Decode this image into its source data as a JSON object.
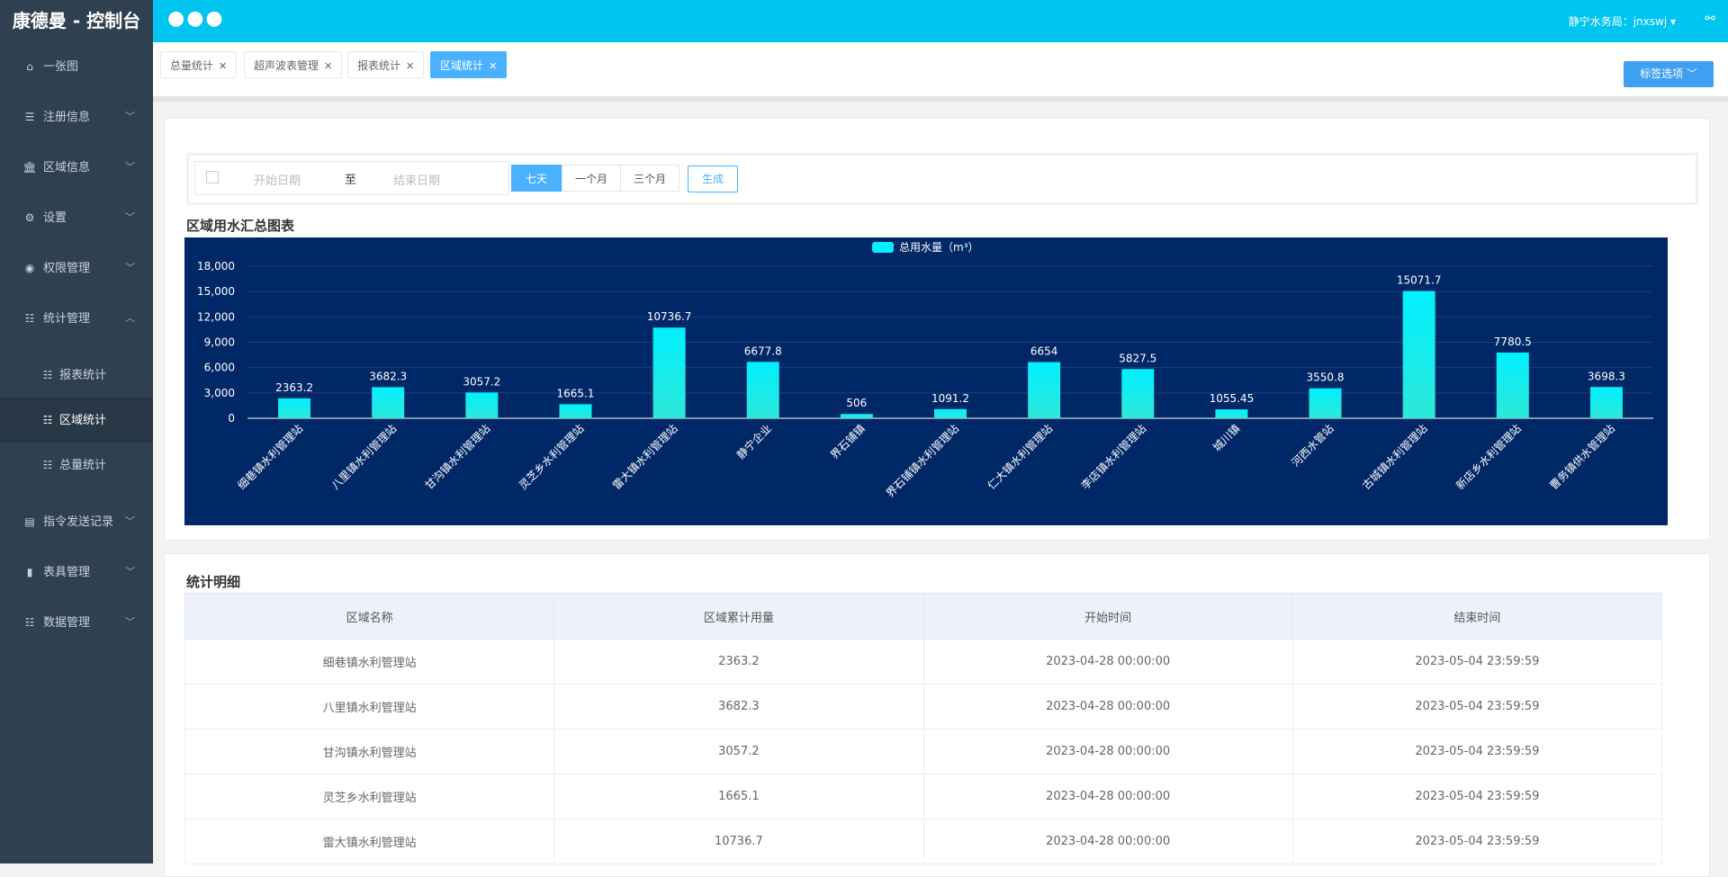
{
  "app": {
    "title": "康德曼 - 控制台"
  },
  "topbar": {
    "menu_dots": "●●●",
    "user": "静宁水务局：jnxswj ▾",
    "share_icon": "share-icon"
  },
  "sidebar": {
    "items": [
      {
        "label": "一张图",
        "icon": "home-icon"
      },
      {
        "label": "注册信息",
        "icon": "list-icon"
      },
      {
        "label": "区域信息",
        "icon": "bank-icon"
      },
      {
        "label": "设置",
        "icon": "gear-icon"
      },
      {
        "label": "权限管理",
        "icon": "user-circle-icon"
      },
      {
        "label": "统计管理",
        "icon": "database-icon"
      }
    ],
    "sub_items": [
      {
        "label": "报表统计",
        "icon": "database-icon"
      },
      {
        "label": "区域统计",
        "icon": "database-icon"
      },
      {
        "label": "总量统计",
        "icon": "database-icon"
      }
    ],
    "items_after": [
      {
        "label": "指令发送记录",
        "icon": "list-alt-icon"
      },
      {
        "label": "表具管理",
        "icon": "book-icon"
      },
      {
        "label": "数据管理",
        "icon": "database-icon"
      }
    ]
  },
  "tabs": [
    {
      "label": "总量统计",
      "active": false
    },
    {
      "label": "超声波表管理",
      "active": false
    },
    {
      "label": "报表统计",
      "active": false
    },
    {
      "label": "区域统计",
      "active": true
    }
  ],
  "tab_options_label": "标签选项 ﹀",
  "filter": {
    "start_placeholder": "开始日期",
    "to_label": "至",
    "end_placeholder": "结束日期",
    "ranges": [
      "七天",
      "一个月",
      "三个月"
    ],
    "active_range": "七天",
    "generate_label": "生成"
  },
  "chart_section_title": "区域用水汇总图表",
  "chart_data": {
    "type": "bar",
    "title": "",
    "legend": [
      "总用水量（m³）"
    ],
    "legend_position": "top-center",
    "categories": [
      "细巷镇水利管理站",
      "八里镇水利管理站",
      "甘沟镇水利管理站",
      "灵芝乡水利管理站",
      "雷大镇水利管理站",
      "静宁企业",
      "界石铺镇",
      "界石铺镇水利管理站",
      "仁大镇水利管理站",
      "李店镇水利管理站",
      "城川镇",
      "河西水管站",
      "古城镇水利管理站",
      "新店乡水利管理站",
      "曹务镇供水管理站"
    ],
    "series": [
      {
        "name": "总用水量（m³）",
        "values": [
          2363.2,
          3682.3,
          3057.2,
          1665.1,
          10736.7,
          6677.8,
          506,
          1091.2,
          6654,
          5827.5,
          1055.45,
          3550.8,
          15071.7,
          7780.5,
          3698.3
        ]
      }
    ],
    "ylim": [
      0,
      18000
    ],
    "yticks": [
      "0",
      "3,000",
      "6,000",
      "9,000",
      "12,000",
      "15,000",
      "18,000"
    ],
    "grid": true,
    "colors": {
      "background": "#002766",
      "bar_top": "#00f0ff",
      "bar_bottom": "#2ee8d8",
      "text": "#ffffff"
    }
  },
  "table_section_title": "统计明细",
  "table": {
    "headers": [
      "区域名称",
      "区域累计用量",
      "开始时间",
      "结束时间"
    ],
    "rows": [
      [
        "细巷镇水利管理站",
        "2363.2",
        "2023-04-28 00:00:00",
        "2023-05-04 23:59:59"
      ],
      [
        "八里镇水利管理站",
        "3682.3",
        "2023-04-28 00:00:00",
        "2023-05-04 23:59:59"
      ],
      [
        "甘沟镇水利管理站",
        "3057.2",
        "2023-04-28 00:00:00",
        "2023-05-04 23:59:59"
      ],
      [
        "灵芝乡水利管理站",
        "1665.1",
        "2023-04-28 00:00:00",
        "2023-05-04 23:59:59"
      ],
      [
        "雷大镇水利管理站",
        "10736.7",
        "2023-04-28 00:00:00",
        "2023-05-04 23:59:59"
      ]
    ]
  }
}
